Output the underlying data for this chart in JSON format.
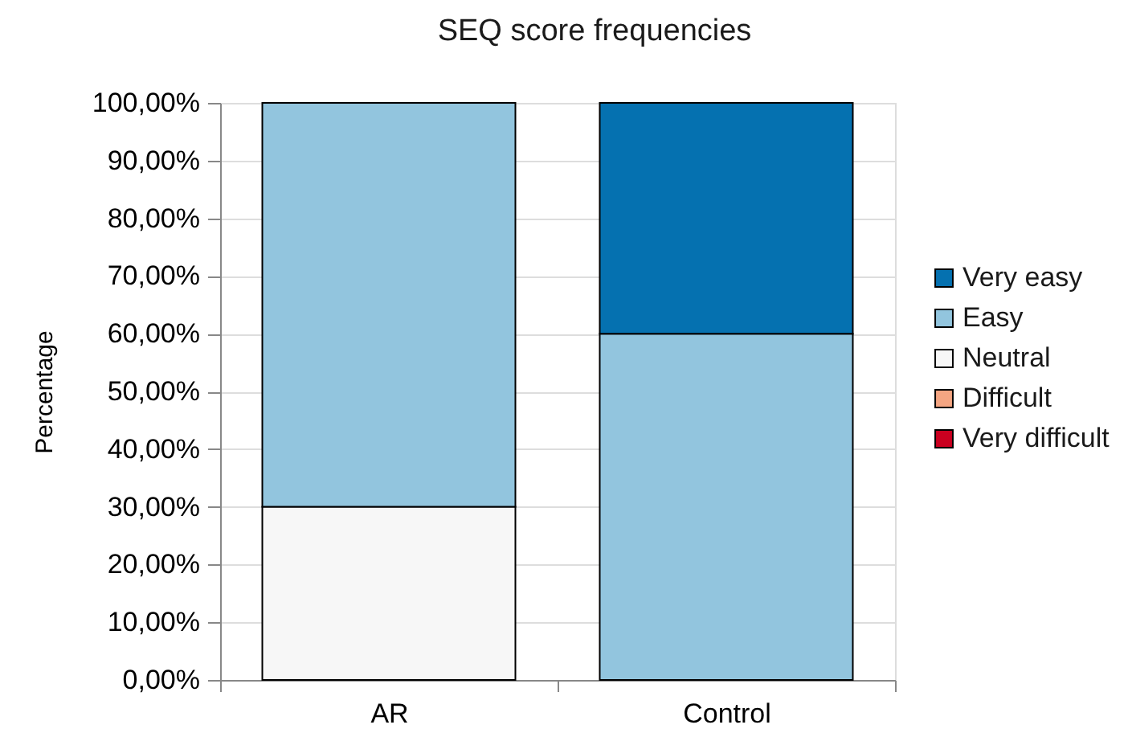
{
  "chart_data": {
    "type": "bar",
    "title": "SEQ score frequencies",
    "ylabel": "Percentage",
    "categories": [
      "AR",
      "Control"
    ],
    "stacked": true,
    "series": [
      {
        "name": "Very difficult",
        "color": "#ca0020",
        "values": [
          0,
          0
        ]
      },
      {
        "name": "Difficult",
        "color": "#f4a582",
        "values": [
          0,
          0
        ]
      },
      {
        "name": "Neutral",
        "color": "#f7f7f7",
        "values": [
          30,
          0
        ]
      },
      {
        "name": "Easy",
        "color": "#92c5de",
        "values": [
          70,
          60
        ]
      },
      {
        "name": "Very easy",
        "color": "#0571b0",
        "values": [
          0,
          40
        ]
      }
    ],
    "ylim": [
      0,
      100
    ],
    "yticks": [
      {
        "value": 0,
        "label": "0,00%"
      },
      {
        "value": 10,
        "label": "10,00%"
      },
      {
        "value": 20,
        "label": "20,00%"
      },
      {
        "value": 30,
        "label": "30,00%"
      },
      {
        "value": 40,
        "label": "40,00%"
      },
      {
        "value": 50,
        "label": "50,00%"
      },
      {
        "value": 60,
        "label": "60,00%"
      },
      {
        "value": 70,
        "label": "70,00%"
      },
      {
        "value": 80,
        "label": "80,00%"
      },
      {
        "value": 90,
        "label": "90,00%"
      },
      {
        "value": 100,
        "label": "100,00%"
      }
    ],
    "grid": "y",
    "legend": "right"
  }
}
